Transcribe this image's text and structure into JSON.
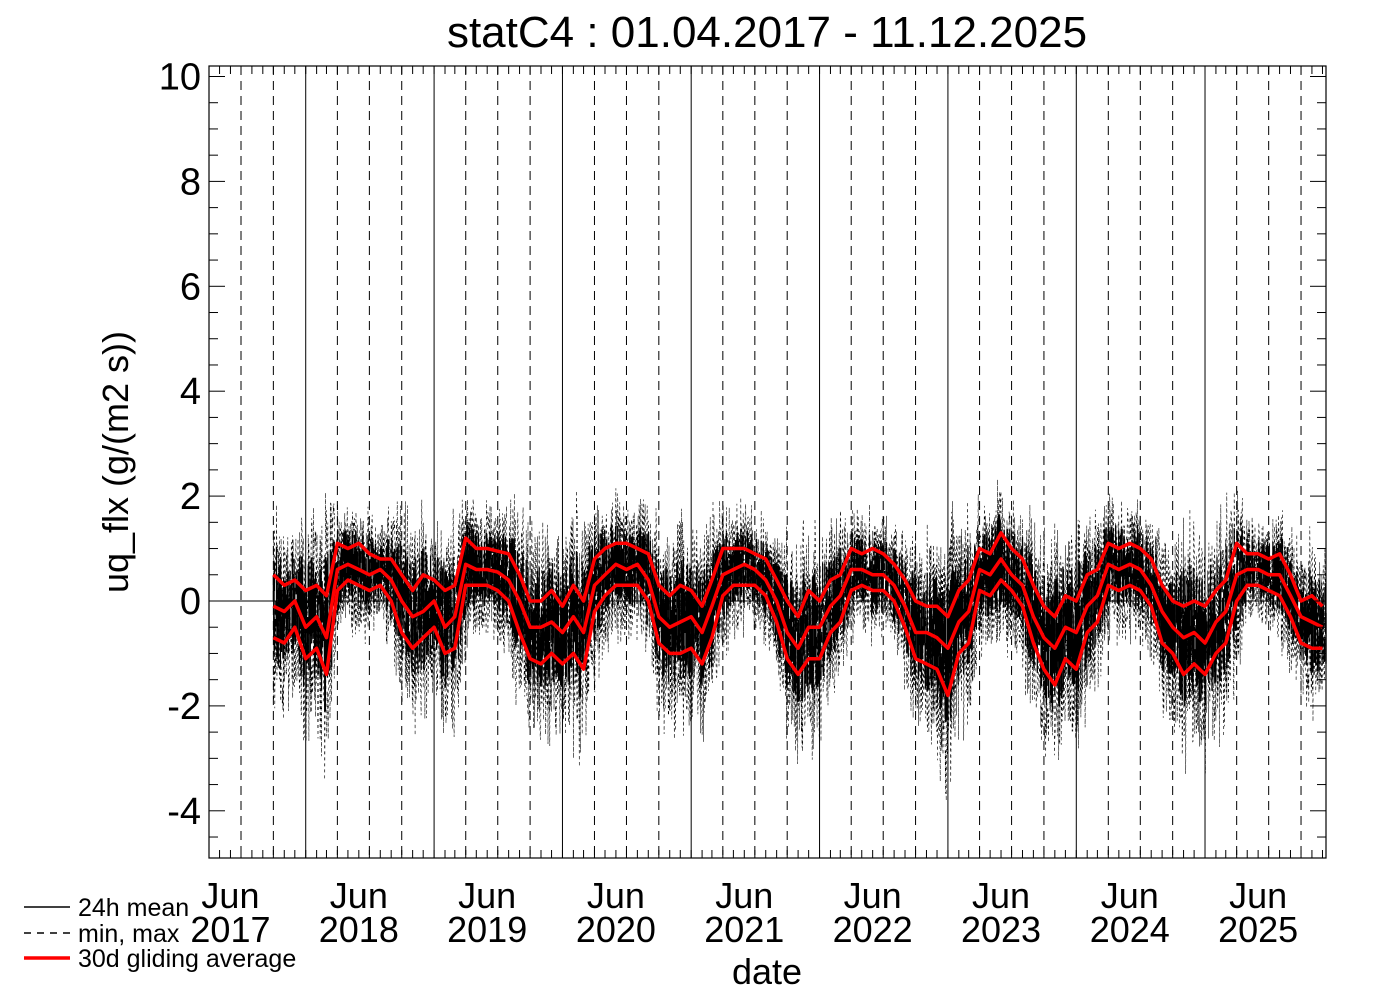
{
  "chart_data": {
    "type": "line",
    "title": "statC4 : 01.04.2017 - 11.12.2025",
    "xlabel": "date",
    "ylabel": "uq_flx (g/(m2 s))",
    "ylim": [
      -4.9,
      10.2
    ],
    "xlim": [
      "2017-04-01",
      "2025-12-11"
    ],
    "yticks": [
      -4,
      -2,
      0,
      2,
      4,
      6,
      8,
      10
    ],
    "ytick_labels": [
      "-4",
      "-2",
      "0",
      "2",
      "4",
      "6",
      "8",
      "10"
    ],
    "xticks": [
      {
        "date": "2017-06-01",
        "label": [
          "Jun",
          "2017"
        ]
      },
      {
        "date": "2018-06-01",
        "label": [
          "Jun",
          "2018"
        ]
      },
      {
        "date": "2019-06-01",
        "label": [
          "Jun",
          "2019"
        ]
      },
      {
        "date": "2020-06-01",
        "label": [
          "Jun",
          "2020"
        ]
      },
      {
        "date": "2021-06-01",
        "label": [
          "Jun",
          "2021"
        ]
      },
      {
        "date": "2022-06-01",
        "label": [
          "Jun",
          "2022"
        ]
      },
      {
        "date": "2023-06-01",
        "label": [
          "Jun",
          "2023"
        ]
      },
      {
        "date": "2024-06-01",
        "label": [
          "Jun",
          "2024"
        ]
      },
      {
        "date": "2025-06-01",
        "label": [
          "Jun",
          "2025"
        ]
      }
    ],
    "year_lines": [
      "2018-01-01",
      "2019-01-01",
      "2020-01-01",
      "2021-01-01",
      "2022-01-01",
      "2023-01-01",
      "2024-01-01",
      "2025-01-01"
    ],
    "quarter_lines": [
      "2017-04-01",
      "2017-07-01",
      "2017-10-01",
      "2018-04-01",
      "2018-07-01",
      "2018-10-01",
      "2019-04-01",
      "2019-07-01",
      "2019-10-01",
      "2020-04-01",
      "2020-07-01",
      "2020-10-01",
      "2021-04-01",
      "2021-07-01",
      "2021-10-01",
      "2022-04-01",
      "2022-07-01",
      "2022-10-01",
      "2023-04-01",
      "2023-07-01",
      "2023-10-01",
      "2024-04-01",
      "2024-07-01",
      "2024-10-01",
      "2025-04-01",
      "2025-07-01",
      "2025-10-01"
    ],
    "zero_line": 0,
    "data_start": "2017-10-01",
    "series": [
      {
        "name": "30d gliding average",
        "style": "mean",
        "x": [
          "2017-10-01",
          "2017-11-01",
          "2017-12-01",
          "2018-01-01",
          "2018-02-01",
          "2018-03-01",
          "2018-04-01",
          "2018-05-01",
          "2018-06-01",
          "2018-07-01",
          "2018-08-01",
          "2018-09-01",
          "2018-10-01",
          "2018-11-01",
          "2018-12-01",
          "2019-01-01",
          "2019-02-01",
          "2019-03-01",
          "2019-04-01",
          "2019-05-01",
          "2019-06-01",
          "2019-07-01",
          "2019-08-01",
          "2019-09-01",
          "2019-10-01",
          "2019-11-01",
          "2019-12-01",
          "2020-01-01",
          "2020-02-01",
          "2020-03-01",
          "2020-04-01",
          "2020-05-01",
          "2020-06-01",
          "2020-07-01",
          "2020-08-01",
          "2020-09-01",
          "2020-10-01",
          "2020-11-01",
          "2020-12-01",
          "2021-01-01",
          "2021-02-01",
          "2021-03-01",
          "2021-04-01",
          "2021-05-01",
          "2021-06-01",
          "2021-07-01",
          "2021-08-01",
          "2021-09-01",
          "2021-10-01",
          "2021-11-01",
          "2021-12-01",
          "2022-01-01",
          "2022-02-01",
          "2022-03-01",
          "2022-04-01",
          "2022-05-01",
          "2022-06-01",
          "2022-07-01",
          "2022-08-01",
          "2022-09-01",
          "2022-10-01",
          "2022-11-01",
          "2022-12-01",
          "2023-01-01",
          "2023-02-01",
          "2023-03-01",
          "2023-04-01",
          "2023-05-01",
          "2023-06-01",
          "2023-07-01",
          "2023-08-01",
          "2023-09-01",
          "2023-10-01",
          "2023-11-01",
          "2023-12-01",
          "2024-01-01",
          "2024-02-01",
          "2024-03-01",
          "2024-04-01",
          "2024-05-01",
          "2024-06-01",
          "2024-07-01",
          "2024-08-01",
          "2024-09-01",
          "2024-10-01",
          "2024-11-01",
          "2024-12-01",
          "2025-01-01",
          "2025-02-01",
          "2025-03-01",
          "2025-04-01",
          "2025-05-01",
          "2025-06-01",
          "2025-07-01",
          "2025-08-01",
          "2025-09-01",
          "2025-10-01",
          "2025-11-01",
          "2025-12-01"
        ],
        "values": [
          -0.1,
          -0.2,
          0.0,
          -0.5,
          -0.3,
          -0.7,
          0.6,
          0.7,
          0.6,
          0.5,
          0.6,
          0.4,
          0.0,
          -0.3,
          -0.2,
          0.0,
          -0.5,
          -0.3,
          0.7,
          0.6,
          0.6,
          0.55,
          0.4,
          0.0,
          -0.5,
          -0.5,
          -0.4,
          -0.6,
          -0.3,
          -0.6,
          0.3,
          0.5,
          0.7,
          0.6,
          0.7,
          0.4,
          -0.3,
          -0.5,
          -0.4,
          -0.3,
          -0.6,
          -0.1,
          0.5,
          0.6,
          0.7,
          0.6,
          0.4,
          0.0,
          -0.6,
          -0.9,
          -0.5,
          -0.5,
          -0.1,
          0.1,
          0.6,
          0.6,
          0.5,
          0.5,
          0.3,
          -0.1,
          -0.6,
          -0.6,
          -0.7,
          -0.9,
          -0.4,
          -0.2,
          0.6,
          0.5,
          0.8,
          0.5,
          0.3,
          -0.3,
          -0.7,
          -0.9,
          -0.5,
          -0.6,
          -0.1,
          0.1,
          0.7,
          0.6,
          0.7,
          0.6,
          0.3,
          -0.2,
          -0.5,
          -0.7,
          -0.6,
          -0.8,
          -0.4,
          -0.2,
          0.5,
          0.6,
          0.6,
          0.5,
          0.5,
          0.1,
          -0.3,
          -0.4,
          -0.5
        ]
      },
      {
        "name": "30d gliding average",
        "style": "max",
        "x": [
          "2017-10-01",
          "2017-11-01",
          "2017-12-01",
          "2018-01-01",
          "2018-02-01",
          "2018-03-01",
          "2018-04-01",
          "2018-05-01",
          "2018-06-01",
          "2018-07-01",
          "2018-08-01",
          "2018-09-01",
          "2018-10-01",
          "2018-11-01",
          "2018-12-01",
          "2019-01-01",
          "2019-02-01",
          "2019-03-01",
          "2019-04-01",
          "2019-05-01",
          "2019-06-01",
          "2019-07-01",
          "2019-08-01",
          "2019-09-01",
          "2019-10-01",
          "2019-11-01",
          "2019-12-01",
          "2020-01-01",
          "2020-02-01",
          "2020-03-01",
          "2020-04-01",
          "2020-05-01",
          "2020-06-01",
          "2020-07-01",
          "2020-08-01",
          "2020-09-01",
          "2020-10-01",
          "2020-11-01",
          "2020-12-01",
          "2021-01-01",
          "2021-02-01",
          "2021-03-01",
          "2021-04-01",
          "2021-05-01",
          "2021-06-01",
          "2021-07-01",
          "2021-08-01",
          "2021-09-01",
          "2021-10-01",
          "2021-11-01",
          "2021-12-01",
          "2022-01-01",
          "2022-02-01",
          "2022-03-01",
          "2022-04-01",
          "2022-05-01",
          "2022-06-01",
          "2022-07-01",
          "2022-08-01",
          "2022-09-01",
          "2022-10-01",
          "2022-11-01",
          "2022-12-01",
          "2023-01-01",
          "2023-02-01",
          "2023-03-01",
          "2023-04-01",
          "2023-05-01",
          "2023-06-01",
          "2023-07-01",
          "2023-08-01",
          "2023-09-01",
          "2023-10-01",
          "2023-11-01",
          "2023-12-01",
          "2024-01-01",
          "2024-02-01",
          "2024-03-01",
          "2024-04-01",
          "2024-05-01",
          "2024-06-01",
          "2024-07-01",
          "2024-08-01",
          "2024-09-01",
          "2024-10-01",
          "2024-11-01",
          "2024-12-01",
          "2025-01-01",
          "2025-02-01",
          "2025-03-01",
          "2025-04-01",
          "2025-05-01",
          "2025-06-01",
          "2025-07-01",
          "2025-08-01",
          "2025-09-01",
          "2025-10-01",
          "2025-11-01",
          "2025-12-01"
        ],
        "values": [
          0.5,
          0.3,
          0.4,
          0.2,
          0.3,
          0.1,
          1.1,
          1.0,
          1.1,
          0.9,
          0.8,
          0.8,
          0.5,
          0.2,
          0.5,
          0.4,
          0.2,
          0.3,
          1.2,
          1.0,
          1.0,
          0.95,
          0.9,
          0.5,
          0.0,
          0.0,
          0.2,
          -0.1,
          0.3,
          0.0,
          0.8,
          1.0,
          1.1,
          1.1,
          1.0,
          0.9,
          0.3,
          0.1,
          0.3,
          0.2,
          -0.1,
          0.4,
          1.0,
          1.0,
          1.0,
          0.9,
          0.8,
          0.4,
          0.0,
          -0.3,
          0.2,
          0.0,
          0.4,
          0.5,
          1.0,
          0.9,
          1.0,
          0.9,
          0.7,
          0.4,
          0.0,
          -0.1,
          -0.1,
          -0.3,
          0.2,
          0.4,
          1.0,
          0.9,
          1.3,
          1.0,
          0.8,
          0.3,
          -0.1,
          -0.3,
          0.1,
          0.0,
          0.5,
          0.6,
          1.1,
          1.0,
          1.1,
          1.0,
          0.8,
          0.3,
          0.0,
          -0.1,
          0.0,
          -0.1,
          0.2,
          0.4,
          1.1,
          0.9,
          0.9,
          0.8,
          0.9,
          0.5,
          0.0,
          0.1,
          -0.1
        ]
      },
      {
        "name": "30d gliding average",
        "style": "min",
        "x": [
          "2017-10-01",
          "2017-11-01",
          "2017-12-01",
          "2018-01-01",
          "2018-02-01",
          "2018-03-01",
          "2018-04-01",
          "2018-05-01",
          "2018-06-01",
          "2018-07-01",
          "2018-08-01",
          "2018-09-01",
          "2018-10-01",
          "2018-11-01",
          "2018-12-01",
          "2019-01-01",
          "2019-02-01",
          "2019-03-01",
          "2019-04-01",
          "2019-05-01",
          "2019-06-01",
          "2019-07-01",
          "2019-08-01",
          "2019-09-01",
          "2019-10-01",
          "2019-11-01",
          "2019-12-01",
          "2020-01-01",
          "2020-02-01",
          "2020-03-01",
          "2020-04-01",
          "2020-05-01",
          "2020-06-01",
          "2020-07-01",
          "2020-08-01",
          "2020-09-01",
          "2020-10-01",
          "2020-11-01",
          "2020-12-01",
          "2021-01-01",
          "2021-02-01",
          "2021-03-01",
          "2021-04-01",
          "2021-05-01",
          "2021-06-01",
          "2021-07-01",
          "2021-08-01",
          "2021-09-01",
          "2021-10-01",
          "2021-11-01",
          "2021-12-01",
          "2022-01-01",
          "2022-02-01",
          "2022-03-01",
          "2022-04-01",
          "2022-05-01",
          "2022-06-01",
          "2022-07-01",
          "2022-08-01",
          "2022-09-01",
          "2022-10-01",
          "2022-11-01",
          "2022-12-01",
          "2023-01-01",
          "2023-02-01",
          "2023-03-01",
          "2023-04-01",
          "2023-05-01",
          "2023-06-01",
          "2023-07-01",
          "2023-08-01",
          "2023-09-01",
          "2023-10-01",
          "2023-11-01",
          "2023-12-01",
          "2024-01-01",
          "2024-02-01",
          "2024-03-01",
          "2024-04-01",
          "2024-05-01",
          "2024-06-01",
          "2024-07-01",
          "2024-08-01",
          "2024-09-01",
          "2024-10-01",
          "2024-11-01",
          "2024-12-01",
          "2025-01-01",
          "2025-02-01",
          "2025-03-01",
          "2025-04-01",
          "2025-05-01",
          "2025-06-01",
          "2025-07-01",
          "2025-08-01",
          "2025-09-01",
          "2025-10-01",
          "2025-11-01",
          "2025-12-01"
        ],
        "values": [
          -0.7,
          -0.8,
          -0.5,
          -1.1,
          -0.9,
          -1.4,
          0.2,
          0.4,
          0.3,
          0.2,
          0.3,
          0.0,
          -0.6,
          -0.9,
          -0.7,
          -0.5,
          -1.0,
          -0.9,
          0.3,
          0.3,
          0.3,
          0.2,
          0.0,
          -0.6,
          -1.1,
          -1.2,
          -1.0,
          -1.2,
          -1.0,
          -1.3,
          -0.2,
          0.1,
          0.3,
          0.3,
          0.3,
          0.0,
          -0.8,
          -1.0,
          -1.0,
          -0.9,
          -1.2,
          -0.7,
          0.1,
          0.3,
          0.3,
          0.3,
          0.1,
          -0.4,
          -1.1,
          -1.4,
          -1.1,
          -1.1,
          -0.6,
          -0.4,
          0.2,
          0.3,
          0.2,
          0.2,
          0.0,
          -0.5,
          -1.1,
          -1.2,
          -1.3,
          -1.8,
          -1.0,
          -0.8,
          0.2,
          0.1,
          0.4,
          0.2,
          -0.1,
          -0.8,
          -1.3,
          -1.6,
          -1.1,
          -1.3,
          -0.6,
          -0.4,
          0.3,
          0.2,
          0.3,
          0.2,
          -0.1,
          -0.8,
          -1.0,
          -1.4,
          -1.2,
          -1.4,
          -1.0,
          -0.8,
          0.0,
          0.3,
          0.3,
          0.2,
          0.1,
          -0.3,
          -0.8,
          -0.9,
          -0.9
        ]
      }
    ],
    "legend": {
      "placement": "bottom-left",
      "entries": [
        {
          "label": "24h mean",
          "style": "solid",
          "color": "#000000"
        },
        {
          "label": "min, max",
          "style": "dashed",
          "color": "#000000"
        },
        {
          "label": "30d gliding average",
          "style": "solid",
          "color": "#ff0000"
        }
      ]
    },
    "colors": {
      "mean": "#000000",
      "minmax": "#000000",
      "gliding": "#ff0000",
      "background": "#ffffff"
    }
  }
}
